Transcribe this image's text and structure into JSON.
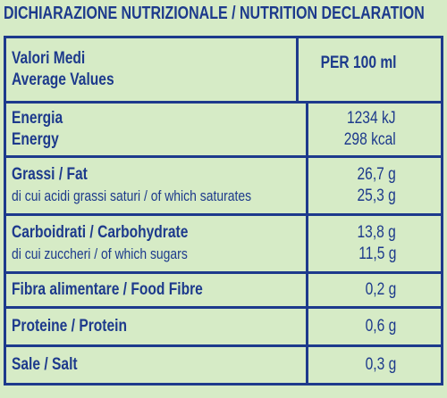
{
  "header": {
    "title": "DICHIARAZIONE NUTRIZIONALE / NUTRITION DECLARATION"
  },
  "table": {
    "head": {
      "label": [
        "Valori Medi",
        "Average Values"
      ],
      "value": "PER 100 ml"
    },
    "rows": [
      {
        "label": [
          "Energia",
          "Energy"
        ],
        "values": [
          "1234 kJ",
          "298 kcal"
        ]
      },
      {
        "label": [
          "Grassi / Fat",
          "di cui acidi grassi saturi / of which saturates"
        ],
        "values": [
          "26,7 g",
          "25,3 g"
        ]
      },
      {
        "label": [
          "Carboidrati / Carbohydrate",
          "di cui zuccheri / of which sugars"
        ],
        "values": [
          "13,8 g",
          "11,5 g"
        ]
      },
      {
        "label": [
          "Fibra alimentare / Food Fibre"
        ],
        "values": [
          "0,2 g"
        ]
      },
      {
        "label": [
          "Proteine / Protein"
        ],
        "values": [
          "0,6 g"
        ]
      },
      {
        "label": [
          "Sale / Salt"
        ],
        "values": [
          "0,3 g"
        ]
      }
    ]
  }
}
